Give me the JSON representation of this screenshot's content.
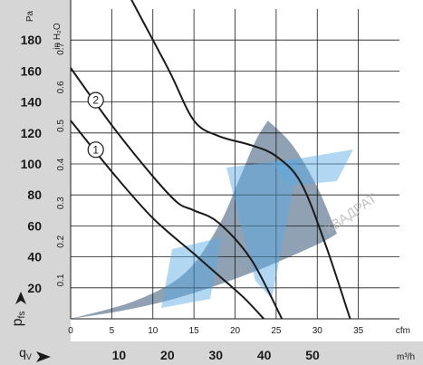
{
  "chart_data": {
    "type": "line",
    "y_axis": {
      "unit": "Pa",
      "label_main": "p",
      "label_sub": "fs",
      "range": [
        0,
        200
      ],
      "ticks": [
        20,
        40,
        60,
        80,
        100,
        120,
        140,
        160,
        180
      ],
      "tick_labels": [
        "20",
        "40",
        "60",
        "80",
        "100",
        "120",
        "140",
        "160",
        "180"
      ]
    },
    "y2_axis": {
      "unit": "in H₂O",
      "ticks": [
        0.1,
        0.2,
        0.3,
        0.4,
        0.5,
        0.6,
        0.7
      ],
      "tick_labels": [
        "0.1",
        "0.2",
        "0.3",
        "0.4",
        "0.5",
        "0.6",
        "0.7"
      ]
    },
    "x_axis": {
      "unit": "cfm",
      "range": [
        0,
        40
      ],
      "ticks": [
        0,
        5,
        10,
        15,
        20,
        25,
        30,
        35
      ],
      "tick_labels": [
        "0",
        "5",
        "10",
        "15",
        "20",
        "25",
        "30",
        "35"
      ]
    },
    "x2_axis": {
      "label_main": "q",
      "label_sub": "V",
      "unit": "m³/h",
      "ticks": [
        10,
        20,
        30,
        40,
        50
      ],
      "tick_labels": [
        "10",
        "20",
        "30",
        "40",
        "50"
      ]
    },
    "series": [
      {
        "marker": "1",
        "x": [
          0,
          5,
          10,
          15,
          18,
          21,
          23.5
        ],
        "y": [
          128,
          95,
          65,
          42,
          28,
          14,
          0
        ]
      },
      {
        "marker": "2",
        "x": [
          0,
          5,
          10,
          13,
          15,
          18,
          22,
          25.7
        ],
        "y": [
          162,
          125,
          92,
          75,
          70,
          62,
          38,
          0
        ]
      },
      {
        "marker": "3",
        "x": [
          0,
          3,
          8,
          12,
          15,
          18,
          22,
          25,
          28,
          31,
          34
        ],
        "y": [
          278,
          250,
          200,
          160,
          128,
          118,
          112,
          105,
          88,
          48,
          0
        ]
      }
    ],
    "operating_area": {
      "upper": {
        "x": [
          0,
          8,
          14,
          18,
          20.5,
          22.5,
          24
        ],
        "y": [
          0,
          12,
          30,
          60,
          90,
          115,
          128
        ]
      },
      "lower": {
        "x": [
          24,
          27,
          30,
          32.4
        ],
        "y": [
          128,
          112,
          85,
          55
        ]
      },
      "bottom": {
        "x": [
          0,
          6,
          12,
          18,
          24,
          30,
          32.4
        ],
        "y": [
          0,
          5,
          12,
          22,
          34,
          48,
          55
        ]
      }
    },
    "watermark_text": "КВАДРАТ",
    "colors": {
      "curve": "#1a1a1a",
      "area": "#8fa1b3",
      "panel": "#d6d6d6",
      "grid": "#1a1a1a",
      "logo": "#5aa9e6"
    }
  }
}
